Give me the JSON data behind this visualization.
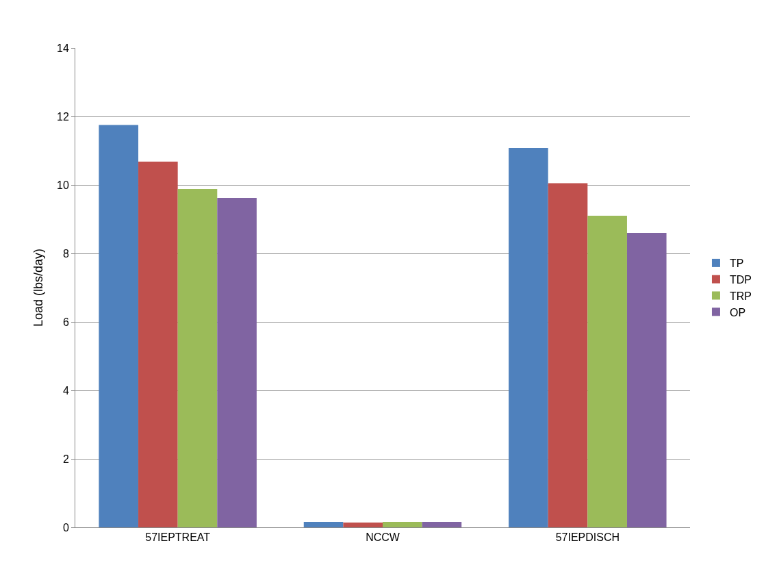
{
  "chart_data": {
    "type": "bar",
    "ylabel": "Load (lbs/day)",
    "categories": [
      "57IEPTREAT",
      "NCCW",
      "57IEPDISCH"
    ],
    "series": [
      {
        "name": "TP",
        "color": "#4f81bd",
        "values": [
          11.75,
          0.16,
          11.08
        ]
      },
      {
        "name": "TDP",
        "color": "#c0504d",
        "values": [
          10.68,
          0.14,
          10.05
        ]
      },
      {
        "name": "TRP",
        "color": "#9bbb59",
        "values": [
          9.88,
          0.16,
          9.1
        ]
      },
      {
        "name": "OP",
        "color": "#8064a2",
        "values": [
          9.62,
          0.16,
          8.6
        ]
      }
    ],
    "ylim": [
      0,
      14
    ],
    "yticks": [
      0,
      2,
      4,
      6,
      8,
      10,
      12,
      14
    ],
    "grid": "y",
    "legend": "right"
  }
}
